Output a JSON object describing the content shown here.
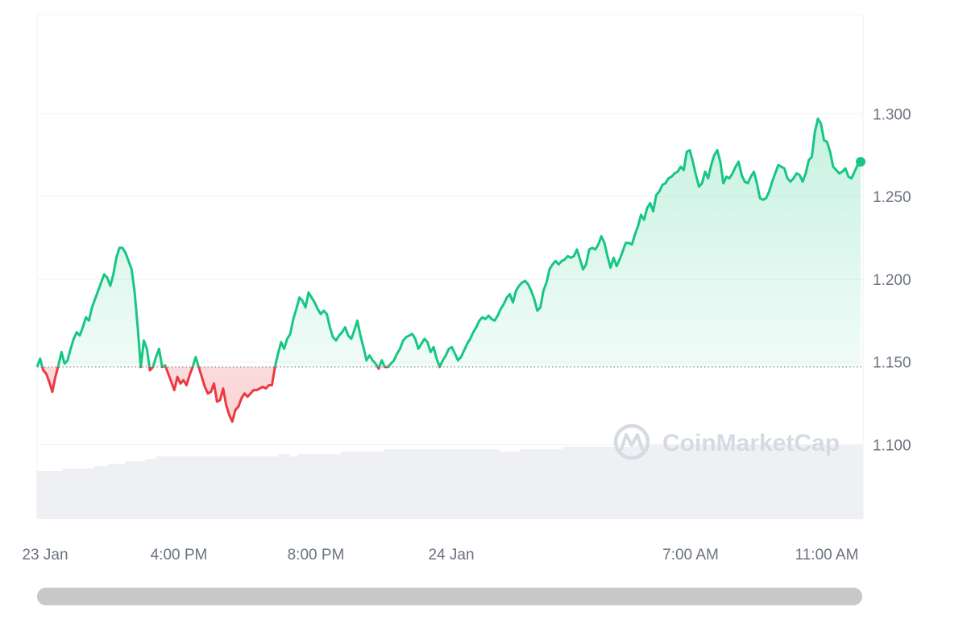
{
  "chart_data": {
    "type": "area",
    "title": "",
    "xlabel": "",
    "ylabel": "",
    "ylim": [
      1.055,
      1.36
    ],
    "baseline": 1.147,
    "x_tick_labels": [
      "23 Jan",
      "4:00 PM",
      "8:00 PM",
      "24 Jan",
      "7:00 AM",
      "11:00 AM"
    ],
    "y_tick_labels": [
      "1.300",
      "1.250",
      "1.200",
      "1.150",
      "1.100"
    ],
    "y_ticks": [
      1.3,
      1.25,
      1.2,
      1.15,
      1.1
    ],
    "grid": true,
    "colors": {
      "up": "#16c784",
      "down": "#ea3943",
      "grid": "#eef0f3",
      "baseline": "#8a8f98",
      "volume": "#eef0f4",
      "watermark": "#d6dbe3"
    },
    "series": [
      {
        "values": [
          1.147,
          1.152,
          1.145,
          1.143,
          1.138,
          1.132,
          1.141,
          1.148,
          1.156,
          1.149,
          1.151,
          1.158,
          1.164,
          1.168,
          1.166,
          1.171,
          1.177,
          1.175,
          1.183,
          1.188,
          1.193,
          1.198,
          1.203,
          1.201,
          1.196,
          1.203,
          1.213,
          1.219,
          1.219,
          1.216,
          1.211,
          1.206,
          1.192,
          1.171,
          1.147,
          1.163,
          1.158,
          1.145,
          1.147,
          1.153,
          1.158,
          1.147,
          1.148,
          1.143,
          1.138,
          1.133,
          1.141,
          1.137,
          1.139,
          1.136,
          1.142,
          1.147,
          1.153,
          1.147,
          1.141,
          1.135,
          1.131,
          1.132,
          1.137,
          1.126,
          1.127,
          1.134,
          1.124,
          1.118,
          1.114,
          1.121,
          1.123,
          1.128,
          1.131,
          1.129,
          1.131,
          1.133,
          1.133,
          1.134,
          1.135,
          1.134,
          1.136,
          1.136,
          1.147,
          1.155,
          1.162,
          1.158,
          1.164,
          1.167,
          1.176,
          1.182,
          1.189,
          1.187,
          1.183,
          1.192,
          1.189,
          1.186,
          1.182,
          1.179,
          1.181,
          1.179,
          1.171,
          1.165,
          1.163,
          1.166,
          1.168,
          1.171,
          1.166,
          1.164,
          1.169,
          1.175,
          1.166,
          1.159,
          1.151,
          1.154,
          1.151,
          1.149,
          1.146,
          1.151,
          1.147,
          1.147,
          1.149,
          1.151,
          1.155,
          1.158,
          1.163,
          1.165,
          1.166,
          1.167,
          1.164,
          1.158,
          1.161,
          1.164,
          1.162,
          1.156,
          1.159,
          1.152,
          1.147,
          1.151,
          1.154,
          1.158,
          1.159,
          1.155,
          1.151,
          1.153,
          1.157,
          1.161,
          1.164,
          1.168,
          1.171,
          1.175,
          1.177,
          1.176,
          1.178,
          1.176,
          1.175,
          1.178,
          1.182,
          1.185,
          1.189,
          1.191,
          1.186,
          1.193,
          1.196,
          1.198,
          1.199,
          1.197,
          1.193,
          1.188,
          1.181,
          1.183,
          1.193,
          1.198,
          1.206,
          1.209,
          1.211,
          1.209,
          1.211,
          1.212,
          1.214,
          1.213,
          1.214,
          1.218,
          1.212,
          1.206,
          1.209,
          1.218,
          1.219,
          1.218,
          1.221,
          1.226,
          1.222,
          1.214,
          1.207,
          1.213,
          1.208,
          1.212,
          1.217,
          1.222,
          1.222,
          1.221,
          1.227,
          1.232,
          1.239,
          1.236,
          1.243,
          1.246,
          1.241,
          1.251,
          1.253,
          1.257,
          1.258,
          1.261,
          1.262,
          1.264,
          1.265,
          1.268,
          1.266,
          1.277,
          1.278,
          1.271,
          1.263,
          1.256,
          1.258,
          1.265,
          1.261,
          1.269,
          1.275,
          1.278,
          1.271,
          1.258,
          1.262,
          1.261,
          1.264,
          1.268,
          1.271,
          1.263,
          1.259,
          1.258,
          1.262,
          1.265,
          1.258,
          1.249,
          1.248,
          1.249,
          1.253,
          1.259,
          1.264,
          1.269,
          1.268,
          1.267,
          1.261,
          1.259,
          1.261,
          1.264,
          1.263,
          1.259,
          1.264,
          1.272,
          1.274,
          1.289,
          1.297,
          1.294,
          1.284,
          1.283,
          1.277,
          1.268,
          1.266,
          1.264,
          1.265,
          1.267,
          1.262,
          1.261,
          1.265,
          1.269,
          1.271
        ]
      }
    ],
    "volume": [
      0.2,
      0.2,
      0.2,
      0.2,
      0.2,
      0.2,
      0.2,
      0.2,
      0.2,
      0.21,
      0.21,
      0.21,
      0.21,
      0.21,
      0.21,
      0.21,
      0.21,
      0.21,
      0.21,
      0.21,
      0.22,
      0.22,
      0.22,
      0.22,
      0.22,
      0.23,
      0.23,
      0.23,
      0.23,
      0.23,
      0.23,
      0.24,
      0.24,
      0.24,
      0.24,
      0.24,
      0.24,
      0.24,
      0.25,
      0.25,
      0.25,
      0.25,
      0.26,
      0.26,
      0.26,
      0.26,
      0.26,
      0.26,
      0.26,
      0.26,
      0.26,
      0.26,
      0.26,
      0.26,
      0.26,
      0.26,
      0.26,
      0.26,
      0.26,
      0.26,
      0.26,
      0.26,
      0.26,
      0.26,
      0.26,
      0.26,
      0.26,
      0.26,
      0.26,
      0.26,
      0.26,
      0.26,
      0.26,
      0.26,
      0.26,
      0.26,
      0.26,
      0.26,
      0.26,
      0.26,
      0.26,
      0.26,
      0.26,
      0.26,
      0.26,
      0.27,
      0.27,
      0.27,
      0.27,
      0.26,
      0.26,
      0.26,
      0.27,
      0.27,
      0.27,
      0.27,
      0.27,
      0.27,
      0.27,
      0.27,
      0.27,
      0.27,
      0.27,
      0.27,
      0.27,
      0.27,
      0.27,
      0.28,
      0.28,
      0.28,
      0.28,
      0.28,
      0.28,
      0.28,
      0.28,
      0.28,
      0.28,
      0.28,
      0.28,
      0.28,
      0.28,
      0.28,
      0.29,
      0.29,
      0.29,
      0.29,
      0.29,
      0.29,
      0.29,
      0.29,
      0.29,
      0.29,
      0.29,
      0.29,
      0.29,
      0.29,
      0.29,
      0.29,
      0.29,
      0.29,
      0.29,
      0.29,
      0.29,
      0.29,
      0.29,
      0.29,
      0.29,
      0.29,
      0.29,
      0.29,
      0.29,
      0.29,
      0.29,
      0.29,
      0.29,
      0.29,
      0.29,
      0.29,
      0.29,
      0.29,
      0.29,
      0.29,
      0.29,
      0.28,
      0.28,
      0.28,
      0.28,
      0.28,
      0.28,
      0.28,
      0.29,
      0.29,
      0.29,
      0.29,
      0.29,
      0.29,
      0.29,
      0.29,
      0.29,
      0.29,
      0.29,
      0.29,
      0.29,
      0.29,
      0.29,
      0.3,
      0.3,
      0.3,
      0.3,
      0.3,
      0.3,
      0.3,
      0.3,
      0.3,
      0.3,
      0.3,
      0.3,
      0.3,
      0.3,
      0.3,
      0.3,
      0.3,
      0.3,
      0.3,
      0.3,
      0.3,
      0.3,
      0.3,
      0.3,
      0.3,
      0.3,
      0.31,
      0.31,
      0.31,
      0.31,
      0.31,
      0.31,
      0.31,
      0.31,
      0.31,
      0.31,
      0.31,
      0.31,
      0.31,
      0.31,
      0.31,
      0.31,
      0.31,
      0.31,
      0.31,
      0.31,
      0.31,
      0.31,
      0.31,
      0.31,
      0.31,
      0.31,
      0.31,
      0.31,
      0.31,
      0.31,
      0.31,
      0.31,
      0.31,
      0.31,
      0.31,
      0.31,
      0.31,
      0.31,
      0.31,
      0.31,
      0.31,
      0.31,
      0.31,
      0.31,
      0.31,
      0.31,
      0.31,
      0.31,
      0.31,
      0.31,
      0.31,
      0.31,
      0.31,
      0.31,
      0.31,
      0.31,
      0.31,
      0.31,
      0.31,
      0.31,
      0.31,
      0.31,
      0.31,
      0.31,
      0.31,
      0.31,
      0.31,
      0.31,
      0.31,
      0.31,
      0.31,
      0.31,
      0.31,
      0.31,
      0.31,
      0.31,
      0.31,
      0.31,
      0.31,
      0.31
    ]
  },
  "watermark": {
    "text": "CoinMarketCap"
  },
  "scrollbar": {
    "position": 0.0,
    "extent": 1.0
  }
}
